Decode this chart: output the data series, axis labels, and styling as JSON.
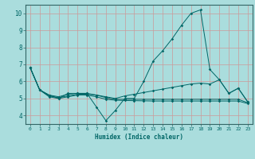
{
  "xlabel": "Humidex (Indice chaleur)",
  "bg_color": "#aadddd",
  "line_color": "#006666",
  "grid_color": "#cc9999",
  "xlim": [
    -0.5,
    23.5
  ],
  "ylim": [
    3.5,
    10.5
  ],
  "yticks": [
    4,
    5,
    6,
    7,
    8,
    9,
    10
  ],
  "xticks": [
    0,
    1,
    2,
    3,
    4,
    5,
    6,
    7,
    8,
    9,
    10,
    11,
    12,
    13,
    14,
    15,
    16,
    17,
    18,
    19,
    20,
    21,
    22,
    23
  ],
  "line0_x": [
    0,
    1,
    2,
    3,
    4,
    5,
    6,
    7,
    8,
    9,
    10,
    11,
    12,
    13,
    14,
    15,
    16,
    17,
    18,
    19,
    20,
    21,
    22,
    23
  ],
  "line0_y": [
    6.8,
    5.5,
    5.2,
    5.0,
    5.3,
    5.3,
    5.3,
    4.5,
    3.7,
    4.3,
    5.0,
    5.0,
    6.0,
    7.2,
    7.8,
    8.5,
    9.3,
    10.0,
    10.2,
    6.7,
    6.1,
    5.3,
    5.6,
    4.8
  ],
  "line1_x": [
    0,
    1,
    2,
    3,
    4,
    5,
    6,
    7,
    8,
    9,
    10,
    11,
    12,
    13,
    14,
    15,
    16,
    17,
    18,
    19,
    20,
    21,
    22,
    23
  ],
  "line1_y": [
    6.8,
    5.5,
    5.2,
    5.1,
    5.25,
    5.3,
    5.3,
    5.2,
    5.1,
    5.0,
    5.15,
    5.25,
    5.35,
    5.45,
    5.55,
    5.65,
    5.75,
    5.85,
    5.9,
    5.85,
    6.1,
    5.3,
    5.6,
    4.8
  ],
  "line2_x": [
    0,
    1,
    2,
    3,
    4,
    5,
    6,
    7,
    8,
    9,
    10,
    11,
    12,
    13,
    14,
    15,
    16,
    17,
    18,
    19,
    20,
    21,
    22,
    23
  ],
  "line2_y": [
    6.8,
    5.5,
    5.15,
    5.05,
    5.15,
    5.25,
    5.25,
    5.2,
    5.05,
    4.95,
    4.95,
    4.95,
    4.95,
    4.95,
    4.95,
    4.95,
    4.95,
    4.95,
    4.95,
    4.95,
    4.95,
    4.95,
    4.95,
    4.75
  ],
  "line3_x": [
    0,
    1,
    2,
    3,
    4,
    5,
    6,
    7,
    8,
    9,
    10,
    11,
    12,
    13,
    14,
    15,
    16,
    17,
    18,
    19,
    20,
    21,
    22,
    23
  ],
  "line3_y": [
    6.8,
    5.5,
    5.1,
    5.0,
    5.1,
    5.2,
    5.2,
    5.1,
    4.95,
    4.9,
    4.88,
    4.87,
    4.86,
    4.85,
    4.85,
    4.85,
    4.85,
    4.85,
    4.85,
    4.85,
    4.85,
    4.85,
    4.85,
    4.7
  ]
}
